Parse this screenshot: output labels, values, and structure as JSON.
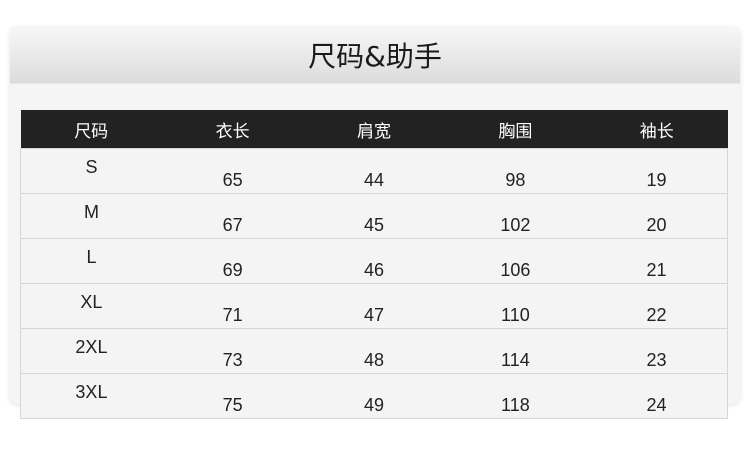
{
  "title": "尺码&助手",
  "columns": [
    "尺码",
    "衣长",
    "肩宽",
    "胸围",
    "袖长"
  ],
  "rows": [
    [
      "S",
      "65",
      "44",
      "98",
      "19"
    ],
    [
      "M",
      "67",
      "45",
      "102",
      "20"
    ],
    [
      "L",
      "69",
      "46",
      "106",
      "21"
    ],
    [
      "XL",
      "71",
      "47",
      "110",
      "22"
    ],
    [
      "2XL",
      "73",
      "48",
      "114",
      "23"
    ],
    [
      "3XL",
      "75",
      "49",
      "118",
      "24"
    ]
  ]
}
